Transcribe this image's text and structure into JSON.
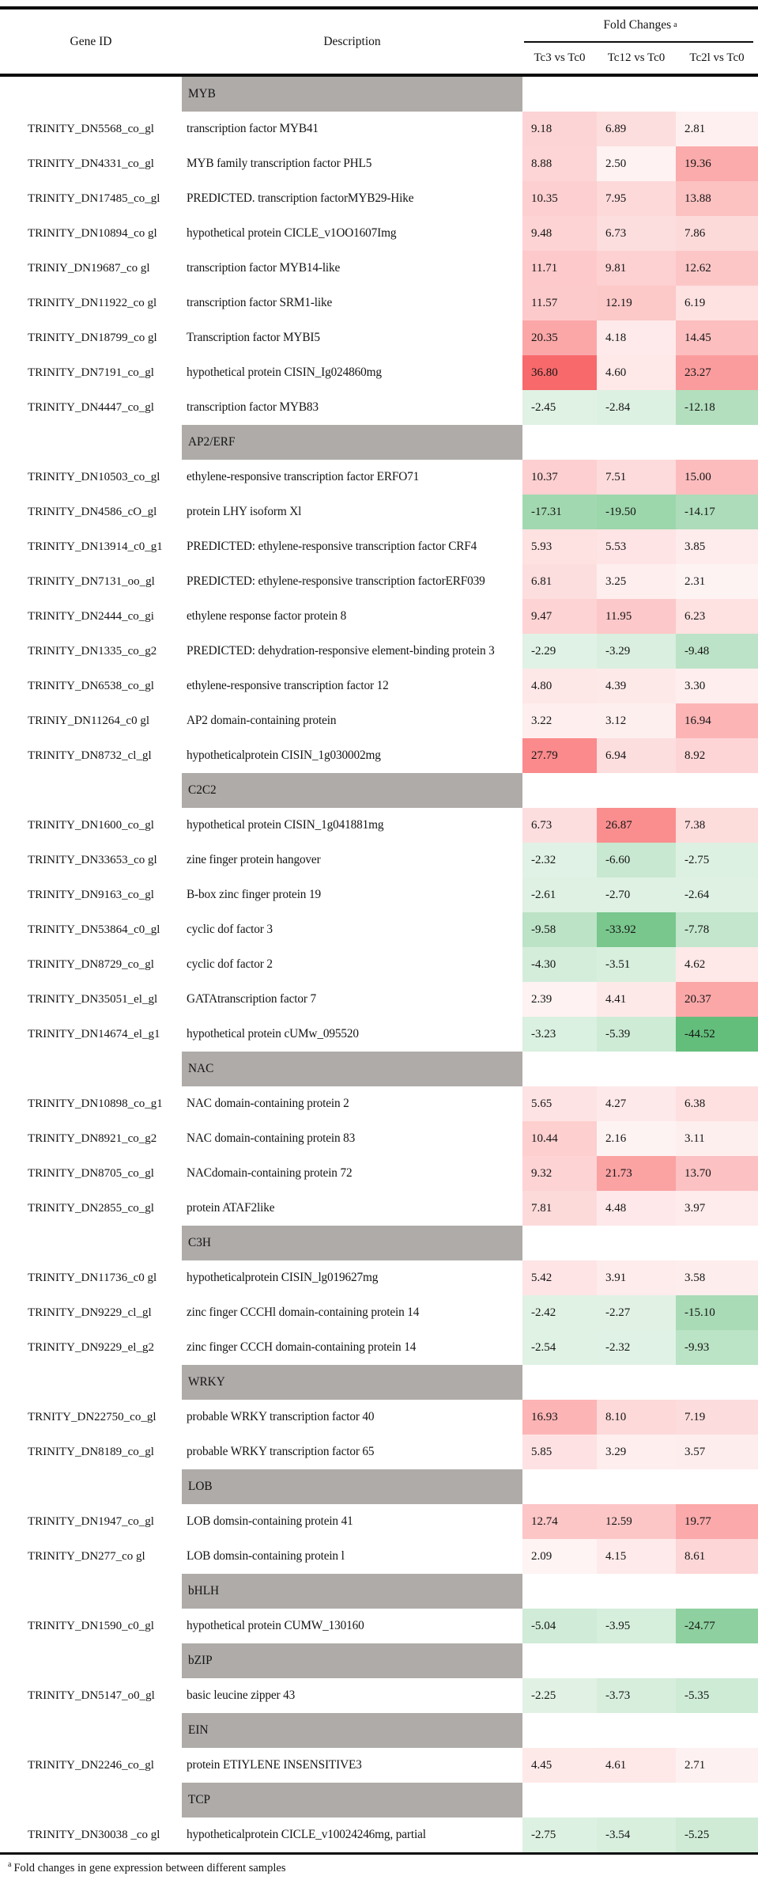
{
  "header": {
    "gene_col": "Gene ID",
    "desc_col": "Description",
    "fold": "Fold Changes",
    "fold_sup": "a",
    "subs": [
      "Tc3 vs Tc0",
      "Tc12 vs Tc0",
      "Tc2l vs Tc0"
    ]
  },
  "footnote": {
    "sup": "a",
    "text": "Fold changes in gene expression between different samples"
  },
  "colors": {
    "positive_base": "#f8696b",
    "negative_base": "#63be7b",
    "category_bar": "#aeaba8",
    "rule": "#0d0d0d"
  },
  "chart_data": {
    "type": "heatmap",
    "title": "Fold Changes",
    "columns": [
      "Tc3 vs Tc0",
      "Tc12 vs Tc0",
      "Tc2l vs Tc0"
    ],
    "note": "red = up-regulated, green = down-regulated"
  },
  "table": {
    "sections": [
      {
        "category": "MYB",
        "rows": [
          {
            "id": "TRINITY_DN5568_co_gl",
            "desc": "transcription factor MYB41",
            "values": [
              "9.18",
              "6.89",
              "2.81"
            ]
          },
          {
            "id": "TRINITY_DN4331_co_gl",
            "desc": "MYB family transcription factor PHL5",
            "values": [
              "8.88",
              "2.50",
              "19.36"
            ]
          },
          {
            "id": "TRINITY_DN17485_co_gl",
            "desc": "PREDICTED. transcription factorMYB29-Hike",
            "values": [
              "10.35",
              "7.95",
              "13.88"
            ]
          },
          {
            "id": "TRINITY_DN10894_co gl",
            "desc": "hypothetical protein CICLE_v1OO1607Img",
            "values": [
              "9.48",
              "6.73",
              "7.86"
            ]
          },
          {
            "id": "TRINIY_DN19687_co gl",
            "desc": "transcription factor MYB14-like",
            "values": [
              "11.71",
              "9.81",
              "12.62"
            ]
          },
          {
            "id": "TRINITY_DN11922_co gl",
            "desc": "transcription factor SRM1-like",
            "values": [
              "11.57",
              "12.19",
              "6.19"
            ]
          },
          {
            "id": "TRINITY_DN18799_co gl",
            "desc": "Transcription factor MYBI5",
            "values": [
              "20.35",
              "4.18",
              "14.45"
            ]
          },
          {
            "id": "TRINITY_DN7191_co_gl",
            "desc": "hypothetical protein CISIN_Ig024860mg",
            "values": [
              "36.80",
              "4.60",
              "23.27"
            ]
          },
          {
            "id": "TRINITY_DN4447_co_gl",
            "desc": "transcription factor MYB83",
            "values": [
              "-2.45",
              "-2.84",
              "-12.18"
            ]
          }
        ]
      },
      {
        "category": "AP2/ERF",
        "rows": [
          {
            "id": "TRINITY_DN10503_co_gl",
            "desc": "ethylene-responsive transcription factor ERFO71",
            "values": [
              "10.37",
              "7.51",
              "15.00"
            ]
          },
          {
            "id": "TRINITY_DN4586_cO_gl",
            "desc": "protein LHY isoform Xl",
            "values": [
              "-17.31",
              "-19.50",
              "-14.17"
            ]
          },
          {
            "id": "TRINITY_DN13914_c0_g1",
            "desc": "PREDICTED: ethylene-responsive transcription factor CRF4",
            "values": [
              "5.93",
              "5.53",
              "3.85"
            ]
          },
          {
            "id": "TRINITY_DN7131_oo_gl",
            "desc": "PREDICTED: ethylene-responsive transcription factorERF039",
            "values": [
              "6.81",
              "3.25",
              "2.31"
            ]
          },
          {
            "id": "TRINITY_DN2444_co_gi",
            "desc": "ethylene response factor protein 8",
            "values": [
              "9.47",
              "11.95",
              "6.23"
            ]
          },
          {
            "id": "TRINITY_DN1335_co_g2",
            "desc": "PREDICTED: dehydration-responsive element-binding protein 3",
            "values": [
              "-2.29",
              "-3.29",
              "-9.48"
            ]
          },
          {
            "id": "TRINITY_DN6538_co_gl",
            "desc": "ethylene-responsive transcription factor 12",
            "values": [
              "4.80",
              "4.39",
              "3.30"
            ]
          },
          {
            "id": "TRINIY_DN11264_c0 gl",
            "desc": "AP2 domain-containing protein",
            "values": [
              "3.22",
              "3.12",
              "16.94"
            ]
          },
          {
            "id": "TRINITY_DN8732_cl_gl",
            "desc": "hypotheticalprotein CISIN_1g030002mg",
            "values": [
              "27.79",
              "6.94",
              "8.92"
            ]
          }
        ]
      },
      {
        "category": "C2C2",
        "rows": [
          {
            "id": "TRINITY_DN1600_co_gl",
            "desc": "hypothetical protein CISIN_1g041881mg",
            "values": [
              "6.73",
              "26.87",
              "7.38"
            ]
          },
          {
            "id": "TRINITY_DN33653_co gl",
            "desc": "zine finger protein hangover",
            "values": [
              "-2.32",
              "-6.60",
              "-2.75"
            ]
          },
          {
            "id": "TRINITY_DN9163_co_gl",
            "desc": "B-box zinc finger protein 19",
            "values": [
              "-2.61",
              "-2.70",
              "-2.64"
            ]
          },
          {
            "id": "TRINITY_DN53864_c0_gl",
            "desc": "cyclic dof factor 3",
            "values": [
              "-9.58",
              "-33.92",
              "-7.78"
            ]
          },
          {
            "id": "TRINITY_DN8729_co_gl",
            "desc": "cyclic dof factor 2",
            "values": [
              "-4.30",
              "-3.51",
              "4.62"
            ]
          },
          {
            "id": "TRINITY_DN35051_el_gl",
            "desc": "GATAtranscription factor 7",
            "values": [
              "2.39",
              "4.41",
              "20.37"
            ]
          },
          {
            "id": "TRINITY_DN14674_el_g1",
            "desc": "hypothetical protein cUMw_095520",
            "values": [
              "-3.23",
              "-5.39",
              "-44.52"
            ]
          }
        ]
      },
      {
        "category": "NAC",
        "rows": [
          {
            "id": "TRINITY_DN10898_co_g1",
            "desc": "NAC domain-containing protein 2",
            "values": [
              "5.65",
              "4.27",
              "6.38"
            ]
          },
          {
            "id": "TRINITY_DN8921_co_g2",
            "desc": "NAC domain-containing protein 83",
            "values": [
              "10.44",
              "2.16",
              "3.11"
            ]
          },
          {
            "id": "TRINITY_DN8705_co_gl",
            "desc": "NACdomain-containing protein 72",
            "values": [
              "9.32",
              "21.73",
              "13.70"
            ]
          },
          {
            "id": "TRINITY_DN2855_co_gl",
            "desc": "protein ATAF2like",
            "values": [
              "7.81",
              "4.48",
              "3.97"
            ]
          }
        ]
      },
      {
        "category": "C3H",
        "rows": [
          {
            "id": "TRINITY_DN11736_c0 gl",
            "desc": "hypotheticalprotein CISIN_lg019627mg",
            "values": [
              "5.42",
              "3.91",
              "3.58"
            ]
          },
          {
            "id": "TRINITY_DN9229_cl_gl",
            "desc": "zinc finger CCCHl domain-containing protein 14",
            "values": [
              "-2.42",
              "-2.27",
              "-15.10"
            ]
          },
          {
            "id": "TRINITY_DN9229_el_g2",
            "desc": "zinc finger CCCH domain-containing protein 14",
            "values": [
              "-2.54",
              "-2.32",
              "-9.93"
            ]
          }
        ]
      },
      {
        "category": "WRKY",
        "rows": [
          {
            "id": "TRNITY_DN22750_co_gl",
            "desc": "probable WRKY transcription factor 40",
            "values": [
              "16.93",
              "8.10",
              "7.19"
            ]
          },
          {
            "id": "TRINITY_DN8189_co_gl",
            "desc": "probable WRKY transcription factor 65",
            "values": [
              "5.85",
              "3.29",
              "3.57"
            ]
          }
        ]
      },
      {
        "category": "LOB",
        "rows": [
          {
            "id": "TRINITY_DN1947_co_gl",
            "desc": "LOB domsin-containing protein 41",
            "values": [
              "12.74",
              "12.59",
              "19.77"
            ]
          },
          {
            "id": "TRINITY_DN277_co gl",
            "desc": "LOB domsin-containing protein l",
            "values": [
              "2.09",
              "4.15",
              "8.61"
            ]
          }
        ]
      },
      {
        "category": "bHLH",
        "rows": [
          {
            "id": "TRINITY_DN1590_c0_gl",
            "desc": "hypothetical protein CUMW_130160",
            "values": [
              "-5.04",
              "-3.95",
              "-24.77"
            ]
          }
        ]
      },
      {
        "category": "bZIP",
        "rows": [
          {
            "id": "TRINITY_DN5147_o0_gl",
            "desc": "basic leucine zipper 43",
            "values": [
              "-2.25",
              "-3.73",
              "-5.35"
            ]
          }
        ]
      },
      {
        "category": "EIN",
        "rows": [
          {
            "id": "TRINITY_DN2246_co_gl",
            "desc": "protein ETIYLENE INSENSITIVE3",
            "values": [
              "4.45",
              "4.61",
              "2.71"
            ]
          }
        ]
      },
      {
        "category": "TCP",
        "rows": [
          {
            "id": "TRINITY_DN30038 _co gl",
            "desc": "hypotheticalprotein CICLE_v10024246mg, partial",
            "values": [
              "-2.75",
              "-3.54",
              "-5.25"
            ]
          }
        ]
      }
    ]
  }
}
